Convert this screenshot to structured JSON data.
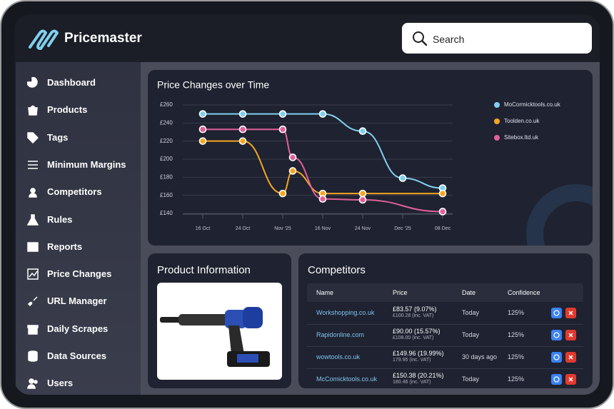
{
  "header": {
    "app_name": "Pricemaster",
    "search_placeholder": "Search"
  },
  "sidebar": {
    "items": [
      "Dashboard",
      "Products",
      "Tags",
      "Minimum Margins",
      "Competitors",
      "Rules",
      "Reports",
      "Price Changes",
      "URL Manager",
      "Daily Scrapes",
      "Data Sources",
      "Users"
    ]
  },
  "chart_data": {
    "type": "line",
    "title": "Price Changes over Time",
    "xlim": [
      -0.5,
      6.25
    ],
    "xticks": [
      {
        "value": 0,
        "label": "16 Oct"
      },
      {
        "value": 1,
        "label": "24 Oct"
      },
      {
        "value": 2,
        "label": "Nov '25"
      },
      {
        "value": 3,
        "label": "16 Nov"
      },
      {
        "value": 4,
        "label": "24 Nov"
      },
      {
        "value": 5,
        "label": "Dec '25"
      },
      {
        "value": 6,
        "label": "08 Dec"
      }
    ],
    "ylim": [
      140,
      260
    ],
    "yticks": [
      {
        "value": 140,
        "label": "£140"
      },
      {
        "value": 160,
        "label": "£160"
      },
      {
        "value": 180,
        "label": "£180"
      },
      {
        "value": 200,
        "label": "£200"
      },
      {
        "value": 220,
        "label": "£220"
      },
      {
        "value": 240,
        "label": "£240"
      },
      {
        "value": 260,
        "label": "£260"
      }
    ],
    "grid": true,
    "series": [
      {
        "name": "MoCormicktools.co.uk",
        "color": "#7fd0ee",
        "x": [
          0,
          1,
          2,
          3,
          4,
          5,
          6
        ],
        "values": [
          250,
          250,
          250,
          250,
          231,
          179,
          168
        ]
      },
      {
        "name": "Toolden.co.uk",
        "color": "#f5a623",
        "x": [
          0,
          1,
          2,
          2.25,
          3,
          4,
          6
        ],
        "values": [
          220,
          220,
          162,
          187,
          162,
          162,
          162
        ]
      },
      {
        "name": "Sitebox.ltd.uk",
        "color": "#e0619a",
        "x": [
          0,
          1,
          2,
          2.25,
          3,
          4,
          6
        ],
        "values": [
          233,
          233,
          233,
          202,
          156,
          155,
          142
        ]
      }
    ]
  },
  "product_info": {
    "title": "Product Information"
  },
  "competitors": {
    "title": "Competitors",
    "columns": [
      "Name",
      "Price",
      "Date",
      "Confidence"
    ],
    "rows": [
      {
        "name": "Workshopping.co.uk",
        "price": "£83.57 (9.07%)",
        "price_vat": "£100.28 (inc. VAT)",
        "date": "Today",
        "confidence": "125%"
      },
      {
        "name": "Rapidonline.com",
        "price": "£90.00 (15.57%)",
        "price_vat": "£108.00 (inc. VAT)",
        "date": "Today",
        "confidence": "125%"
      },
      {
        "name": "wowtools.co.uk",
        "price": "£149.96 (19.99%)",
        "price_vat": "179.95 (inc. VAT)",
        "date": "30 days ago",
        "confidence": "125%"
      },
      {
        "name": "McComicktools.co.uk",
        "price": "£150.38 (20.21%)",
        "price_vat": "180.46 (inc. VAT)",
        "date": "Today",
        "confidence": "125%"
      }
    ]
  }
}
